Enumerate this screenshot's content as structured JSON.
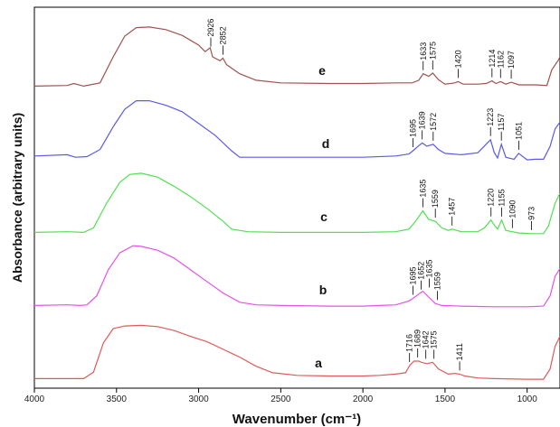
{
  "chart_data": {
    "type": "line",
    "xlabel": "Wavenumber (cm⁻¹)",
    "ylabel": "Absorbance (arbitrary units)",
    "xlim": [
      4000,
      800
    ],
    "x_reversed": true,
    "x_ticks": [
      4000,
      3500,
      3000,
      2500,
      2000,
      1500,
      1000
    ],
    "y_ticks_shown": false,
    "grid": false,
    "legend": "none",
    "series": [
      {
        "name": "e",
        "color": "#a0524d",
        "offset": 4,
        "points": [
          [
            4000,
            0.05
          ],
          [
            3800,
            0.06
          ],
          [
            3760,
            0.09
          ],
          [
            3700,
            0.05
          ],
          [
            3600,
            0.1
          ],
          [
            3520,
            0.5
          ],
          [
            3450,
            0.82
          ],
          [
            3380,
            0.95
          ],
          [
            3300,
            0.96
          ],
          [
            3200,
            0.92
          ],
          [
            3100,
            0.83
          ],
          [
            3000,
            0.68
          ],
          [
            2960,
            0.58
          ],
          [
            2930,
            0.64
          ],
          [
            2915,
            0.5
          ],
          [
            2870,
            0.44
          ],
          [
            2852,
            0.48
          ],
          [
            2830,
            0.38
          ],
          [
            2750,
            0.24
          ],
          [
            2650,
            0.14
          ],
          [
            2500,
            0.1
          ],
          [
            2200,
            0.09
          ],
          [
            2000,
            0.09
          ],
          [
            1800,
            0.1
          ],
          [
            1700,
            0.1
          ],
          [
            1660,
            0.14
          ],
          [
            1633,
            0.24
          ],
          [
            1600,
            0.2
          ],
          [
            1575,
            0.25
          ],
          [
            1540,
            0.15
          ],
          [
            1500,
            0.08
          ],
          [
            1440,
            0.1
          ],
          [
            1420,
            0.12
          ],
          [
            1390,
            0.08
          ],
          [
            1300,
            0.08
          ],
          [
            1250,
            0.09
          ],
          [
            1214,
            0.13
          ],
          [
            1190,
            0.09
          ],
          [
            1162,
            0.12
          ],
          [
            1130,
            0.08
          ],
          [
            1097,
            0.11
          ],
          [
            1050,
            0.07
          ],
          [
            950,
            0.07
          ],
          [
            880,
            0.06
          ],
          [
            850,
            0.3
          ],
          [
            810,
            0.45
          ],
          [
            800,
            0.5
          ]
        ]
      },
      {
        "name": "d",
        "color": "#5a5ae6",
        "offset": 3,
        "points": [
          [
            4000,
            0.1
          ],
          [
            3800,
            0.12
          ],
          [
            3750,
            0.08
          ],
          [
            3680,
            0.09
          ],
          [
            3600,
            0.2
          ],
          [
            3520,
            0.55
          ],
          [
            3450,
            0.82
          ],
          [
            3380,
            0.95
          ],
          [
            3300,
            0.95
          ],
          [
            3200,
            0.88
          ],
          [
            3100,
            0.78
          ],
          [
            3000,
            0.6
          ],
          [
            2900,
            0.42
          ],
          [
            2800,
            0.18
          ],
          [
            2750,
            0.08
          ],
          [
            2500,
            0.08
          ],
          [
            2200,
            0.08
          ],
          [
            2000,
            0.08
          ],
          [
            1800,
            0.1
          ],
          [
            1720,
            0.13
          ],
          [
            1695,
            0.18
          ],
          [
            1660,
            0.26
          ],
          [
            1639,
            0.3
          ],
          [
            1610,
            0.25
          ],
          [
            1572,
            0.28
          ],
          [
            1540,
            0.2
          ],
          [
            1500,
            0.14
          ],
          [
            1400,
            0.12
          ],
          [
            1300,
            0.15
          ],
          [
            1250,
            0.28
          ],
          [
            1223,
            0.35
          ],
          [
            1200,
            0.15
          ],
          [
            1180,
            0.07
          ],
          [
            1157,
            0.28
          ],
          [
            1130,
            0.08
          ],
          [
            1080,
            0.05
          ],
          [
            1051,
            0.14
          ],
          [
            1000,
            0.04
          ],
          [
            950,
            0.05
          ],
          [
            900,
            0.05
          ],
          [
            860,
            0.25
          ],
          [
            830,
            0.52
          ],
          [
            800,
            0.62
          ]
        ]
      },
      {
        "name": "c",
        "color": "#52e052",
        "offset": 2,
        "points": [
          [
            4000,
            0.05
          ],
          [
            3800,
            0.06
          ],
          [
            3700,
            0.05
          ],
          [
            3640,
            0.12
          ],
          [
            3560,
            0.5
          ],
          [
            3480,
            0.82
          ],
          [
            3420,
            0.94
          ],
          [
            3350,
            0.96
          ],
          [
            3250,
            0.9
          ],
          [
            3150,
            0.76
          ],
          [
            3050,
            0.6
          ],
          [
            2950,
            0.42
          ],
          [
            2850,
            0.22
          ],
          [
            2800,
            0.1
          ],
          [
            2700,
            0.06
          ],
          [
            2500,
            0.05
          ],
          [
            2200,
            0.05
          ],
          [
            2000,
            0.05
          ],
          [
            1800,
            0.06
          ],
          [
            1720,
            0.1
          ],
          [
            1680,
            0.22
          ],
          [
            1635,
            0.38
          ],
          [
            1600,
            0.25
          ],
          [
            1559,
            0.22
          ],
          [
            1520,
            0.12
          ],
          [
            1480,
            0.08
          ],
          [
            1457,
            0.1
          ],
          [
            1400,
            0.06
          ],
          [
            1300,
            0.06
          ],
          [
            1260,
            0.12
          ],
          [
            1220,
            0.24
          ],
          [
            1200,
            0.16
          ],
          [
            1180,
            0.1
          ],
          [
            1155,
            0.24
          ],
          [
            1130,
            0.08
          ],
          [
            1090,
            0.06
          ],
          [
            1050,
            0.04
          ],
          [
            973,
            0.03
          ],
          [
            900,
            0.03
          ],
          [
            870,
            0.15
          ],
          [
            830,
            0.5
          ],
          [
            800,
            0.65
          ]
        ]
      },
      {
        "name": "b",
        "color": "#e552e5",
        "offset": 1,
        "points": [
          [
            4000,
            0.05
          ],
          [
            3800,
            0.06
          ],
          [
            3720,
            0.05
          ],
          [
            3680,
            0.06
          ],
          [
            3620,
            0.2
          ],
          [
            3550,
            0.6
          ],
          [
            3480,
            0.86
          ],
          [
            3400,
            0.97
          ],
          [
            3350,
            0.96
          ],
          [
            3250,
            0.9
          ],
          [
            3150,
            0.78
          ],
          [
            3050,
            0.6
          ],
          [
            2950,
            0.42
          ],
          [
            2850,
            0.24
          ],
          [
            2750,
            0.1
          ],
          [
            2650,
            0.06
          ],
          [
            2500,
            0.05
          ],
          [
            2200,
            0.04
          ],
          [
            2000,
            0.04
          ],
          [
            1900,
            0.05
          ],
          [
            1800,
            0.06
          ],
          [
            1720,
            0.12
          ],
          [
            1695,
            0.16
          ],
          [
            1652,
            0.24
          ],
          [
            1635,
            0.27
          ],
          [
            1600,
            0.18
          ],
          [
            1559,
            0.08
          ],
          [
            1520,
            0.05
          ],
          [
            1400,
            0.04
          ],
          [
            1200,
            0.03
          ],
          [
            1000,
            0.03
          ],
          [
            900,
            0.04
          ],
          [
            860,
            0.2
          ],
          [
            830,
            0.5
          ],
          [
            800,
            0.62
          ]
        ]
      },
      {
        "name": "a",
        "color": "#e05a5a",
        "offset": 0,
        "points": [
          [
            4000,
            0.05
          ],
          [
            3800,
            0.05
          ],
          [
            3700,
            0.05
          ],
          [
            3640,
            0.15
          ],
          [
            3580,
            0.6
          ],
          [
            3520,
            0.82
          ],
          [
            3450,
            0.86
          ],
          [
            3350,
            0.87
          ],
          [
            3250,
            0.85
          ],
          [
            3150,
            0.79
          ],
          [
            3050,
            0.7
          ],
          [
            2950,
            0.62
          ],
          [
            2850,
            0.5
          ],
          [
            2750,
            0.38
          ],
          [
            2650,
            0.24
          ],
          [
            2550,
            0.14
          ],
          [
            2400,
            0.1
          ],
          [
            2200,
            0.09
          ],
          [
            2000,
            0.09
          ],
          [
            1900,
            0.1
          ],
          [
            1800,
            0.12
          ],
          [
            1740,
            0.14
          ],
          [
            1716,
            0.25
          ],
          [
            1689,
            0.32
          ],
          [
            1660,
            0.32
          ],
          [
            1642,
            0.3
          ],
          [
            1610,
            0.28
          ],
          [
            1575,
            0.3
          ],
          [
            1540,
            0.2
          ],
          [
            1480,
            0.12
          ],
          [
            1440,
            0.13
          ],
          [
            1411,
            0.12
          ],
          [
            1380,
            0.09
          ],
          [
            1300,
            0.06
          ],
          [
            1200,
            0.05
          ],
          [
            1000,
            0.04
          ],
          [
            900,
            0.04
          ],
          [
            860,
            0.2
          ],
          [
            830,
            0.55
          ],
          [
            800,
            0.7
          ]
        ]
      }
    ],
    "peak_annotations": [
      {
        "series": "e",
        "peaks": [
          "2926",
          "2852",
          "1633",
          "1575",
          "1420",
          "1214",
          "1162",
          "1097"
        ]
      },
      {
        "series": "d",
        "peaks": [
          "1695",
          "1639",
          "1572",
          "1223",
          "1157",
          "1051"
        ]
      },
      {
        "series": "c",
        "peaks": [
          "1635",
          "1559",
          "1457",
          "1220",
          "1155",
          "1090",
          "973"
        ]
      },
      {
        "series": "b",
        "peaks": [
          "1695",
          "1652",
          "1635",
          "1559"
        ]
      },
      {
        "series": "a",
        "peaks": [
          "1716",
          "1689",
          "1642",
          "1575",
          "1411"
        ]
      }
    ]
  }
}
